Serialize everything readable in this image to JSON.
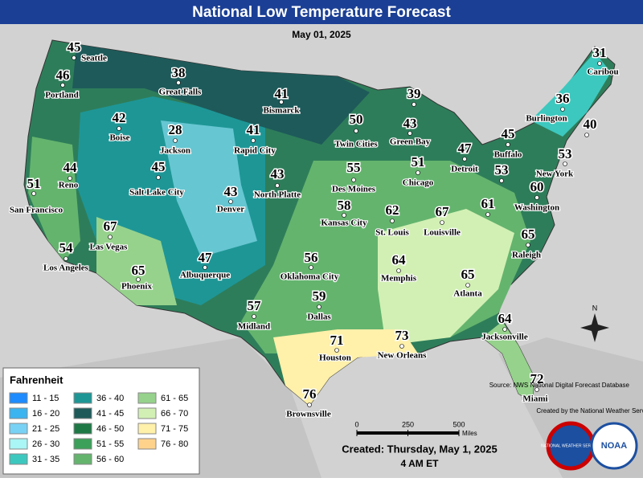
{
  "header": {
    "title": "National Low Temperature Forecast",
    "date": "May 01, 2025"
  },
  "cities": [
    {
      "name": "Seattle",
      "temp": 45
    },
    {
      "name": "Portland",
      "temp": 46
    },
    {
      "name": "Boise",
      "temp": 42
    },
    {
      "name": "Great Falls",
      "temp": 38
    },
    {
      "name": "Bismarck",
      "temp": 41
    },
    {
      "name": "Jackson",
      "temp": 28
    },
    {
      "name": "Rapid City",
      "temp": 41
    },
    {
      "name": "Reno",
      "temp": 44
    },
    {
      "name": "San Francisco",
      "temp": 51
    },
    {
      "name": "Salt Lake City",
      "temp": 45
    },
    {
      "name": "Denver",
      "temp": 43
    },
    {
      "name": "North Platte",
      "temp": 43
    },
    {
      "name": "Las Vegas",
      "temp": 67
    },
    {
      "name": "Los Angeles",
      "temp": 54
    },
    {
      "name": "Phoenix",
      "temp": 65
    },
    {
      "name": "Albuquerque",
      "temp": 47
    },
    {
      "name": "Oklahoma City",
      "temp": 56
    },
    {
      "name": "Midland",
      "temp": 57
    },
    {
      "name": "Dallas",
      "temp": 59
    },
    {
      "name": "Houston",
      "temp": 71
    },
    {
      "name": "Brownsville",
      "temp": 76
    },
    {
      "name": "New Orleans",
      "temp": 73
    },
    {
      "name": "Memphis",
      "temp": 64
    },
    {
      "name": "Atlanta",
      "temp": 65
    },
    {
      "name": "Jacksonville",
      "temp": 64
    },
    {
      "name": "Miami",
      "temp": 72
    },
    {
      "name": "Des Moines",
      "temp": 55
    },
    {
      "name": "Kansas City",
      "temp": 58
    },
    {
      "name": "St. Louis",
      "temp": 62
    },
    {
      "name": "Louisville",
      "temp": 67
    },
    {
      "name": "Chicago",
      "temp": 51
    },
    {
      "name": "Twin Cities",
      "temp": 50
    },
    {
      "name": "Green Bay",
      "temp": 43
    },
    {
      "name": "Detroit",
      "temp": 47
    },
    {
      "name": "Buffalo",
      "temp": 45
    },
    {
      "name": "New York",
      "temp": 53
    },
    {
      "name": "Washington",
      "temp": 60
    },
    {
      "name": "Raleigh",
      "temp": 65
    },
    {
      "name": "Burlington",
      "temp": 36
    },
    {
      "name": "Caribou",
      "temp": 31
    },
    {
      "temp": 40
    },
    {
      "temp": 53
    },
    {
      "temp": 61
    },
    {
      "temp": 39
    }
  ],
  "legend": {
    "title": "Fahrenheit",
    "items": [
      {
        "label": "11 - 15",
        "color": "#1e8cff"
      },
      {
        "label": "16 - 20",
        "color": "#3cb4f0"
      },
      {
        "label": "21 - 25",
        "color": "#78d2f5"
      },
      {
        "label": "26 - 30",
        "color": "#aaf5f5"
      },
      {
        "label": "31 - 35",
        "color": "#3cc8be"
      },
      {
        "label": "36 - 40",
        "color": "#1e9696"
      },
      {
        "label": "41 - 45",
        "color": "#1e5a5a"
      },
      {
        "label": "46 - 50",
        "color": "#1e7846"
      },
      {
        "label": "51 - 55",
        "color": "#3ca05a"
      },
      {
        "label": "56 - 60",
        "color": "#64b46e"
      },
      {
        "label": "61 - 65",
        "color": "#96d28c"
      },
      {
        "label": "66 - 70",
        "color": "#d2f0b4"
      },
      {
        "label": "71 - 75",
        "color": "#fff0aa"
      },
      {
        "label": "76 - 80",
        "color": "#ffd28c"
      }
    ]
  },
  "source": "Source: NWS National Digital Forecast Database",
  "credit": "Created by the National Weather Service",
  "scale": {
    "ticks": [
      0,
      250,
      500
    ],
    "unit": "Miles"
  },
  "created": "Created: Thursday, May 1, 2025",
  "time": "4 AM ET",
  "compass": "N",
  "logos": {
    "nws": "NATIONAL WEATHER SERVICE",
    "noaa": "NOAA"
  }
}
